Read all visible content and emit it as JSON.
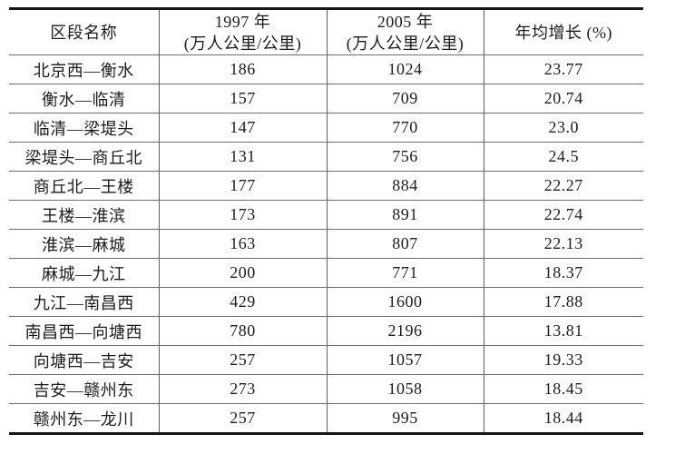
{
  "document": {
    "type": "scanned-table",
    "language": "zh-CN"
  },
  "colors": {
    "background": "#ffffff",
    "heavy_rule": "#161616",
    "light_rule": "#6e6e6e",
    "text": "#1c1c1c"
  },
  "header": {
    "col1": "区段名称",
    "col2_line1": "1997 年",
    "col2_line2": "(万人公里/公里)",
    "col3_line1": "2005 年",
    "col3_line2": "(万人公里/公里)",
    "col4": "年均增长 (%)"
  },
  "rows": [
    {
      "section": "北京西—衡水",
      "v1997": "186",
      "v2005": "1024",
      "growth": "23.77"
    },
    {
      "section": "衡水—临清",
      "v1997": "157",
      "v2005": "709",
      "growth": "20.74"
    },
    {
      "section": "临清—梁堤头",
      "v1997": "147",
      "v2005": "770",
      "growth": "23.0"
    },
    {
      "section": "梁堤头—商丘北",
      "v1997": "131",
      "v2005": "756",
      "growth": "24.5"
    },
    {
      "section": "商丘北—王楼",
      "v1997": "177",
      "v2005": "884",
      "growth": "22.27"
    },
    {
      "section": "王楼—淮滨",
      "v1997": "173",
      "v2005": "891",
      "growth": "22.74"
    },
    {
      "section": "淮滨—麻城",
      "v1997": "163",
      "v2005": "807",
      "growth": "22.13"
    },
    {
      "section": "麻城—九江",
      "v1997": "200",
      "v2005": "771",
      "growth": "18.37"
    },
    {
      "section": "九江—南昌西",
      "v1997": "429",
      "v2005": "1600",
      "growth": "17.88"
    },
    {
      "section": "南昌西—向塘西",
      "v1997": "780",
      "v2005": "2196",
      "growth": "13.81"
    },
    {
      "section": "向塘西—吉安",
      "v1997": "257",
      "v2005": "1057",
      "growth": "19.33"
    },
    {
      "section": "吉安—赣州东",
      "v1997": "273",
      "v2005": "1058",
      "growth": "18.45"
    },
    {
      "section": "赣州东—龙川",
      "v1997": "257",
      "v2005": "995",
      "growth": "18.44"
    }
  ],
  "chart_data": {
    "type": "table",
    "title": "",
    "columns": [
      "区段名称",
      "1997 年 (万人公里/公里)",
      "2005 年 (万人公里/公里)",
      "年均增长 (%)"
    ],
    "cells": [
      [
        "北京西—衡水",
        186,
        1024,
        23.77
      ],
      [
        "衡水—临清",
        157,
        709,
        20.74
      ],
      [
        "临清—梁堤头",
        147,
        770,
        23.0
      ],
      [
        "梁堤头—商丘北",
        131,
        756,
        24.5
      ],
      [
        "商丘北—王楼",
        177,
        884,
        22.27
      ],
      [
        "王楼—淮滨",
        173,
        891,
        22.74
      ],
      [
        "淮滨—麻城",
        163,
        807,
        22.13
      ],
      [
        "麻城—九江",
        200,
        771,
        18.37
      ],
      [
        "九江—南昌西",
        429,
        1600,
        17.88
      ],
      [
        "南昌西—向塘西",
        780,
        2196,
        13.81
      ],
      [
        "向塘西—吉安",
        257,
        1057,
        19.33
      ],
      [
        "吉安—赣州东",
        273,
        1058,
        18.45
      ],
      [
        "赣州东—龙川",
        257,
        995,
        18.44
      ]
    ]
  }
}
